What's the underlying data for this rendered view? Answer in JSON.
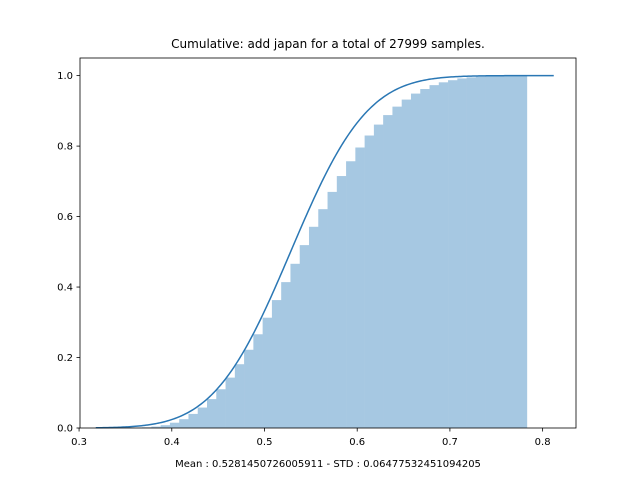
{
  "chart_data": {
    "type": "area",
    "title": "Cumulative: add japan for a total of 27999 samples.",
    "xlabel": "Mean : 0.5281450726005911 - STD : 0.06477532451094205",
    "ylabel": "",
    "xlim": [
      0.301,
      0.836
    ],
    "ylim": [
      0,
      1.05
    ],
    "x_ticks": [
      "0.3",
      "0.4",
      "0.5",
      "0.6",
      "0.7",
      "0.8"
    ],
    "y_ticks": [
      "0.0",
      "0.2",
      "0.4",
      "0.6",
      "0.8",
      "1.0"
    ],
    "grid": false,
    "colors": {
      "bars": "#a6c8e2",
      "line": "#2a77b4"
    },
    "histogram": {
      "bin_edges": [
        0.318,
        0.328,
        0.338,
        0.348,
        0.358,
        0.368,
        0.378,
        0.388,
        0.398,
        0.408,
        0.418,
        0.428,
        0.438,
        0.448,
        0.458,
        0.468,
        0.478,
        0.488,
        0.498,
        0.508,
        0.518,
        0.528,
        0.538,
        0.548,
        0.558,
        0.568,
        0.578,
        0.588,
        0.598,
        0.608,
        0.618,
        0.628,
        0.638,
        0.648,
        0.658,
        0.668,
        0.678,
        0.688,
        0.698,
        0.708,
        0.718,
        0.728,
        0.738,
        0.748,
        0.758,
        0.768,
        0.778,
        0.783
      ],
      "cumulative_values": [
        0.0,
        0.0,
        0.0,
        0.0,
        0.001,
        0.002,
        0.004,
        0.008,
        0.015,
        0.025,
        0.04,
        0.058,
        0.082,
        0.11,
        0.143,
        0.181,
        0.222,
        0.266,
        0.313,
        0.363,
        0.414,
        0.466,
        0.519,
        0.571,
        0.621,
        0.67,
        0.715,
        0.757,
        0.796,
        0.83,
        0.861,
        0.888,
        0.912,
        0.932,
        0.949,
        0.962,
        0.973,
        0.981,
        0.987,
        0.992,
        0.995,
        0.997,
        0.998,
        0.999,
        1.0,
        1.0,
        1.0
      ]
    },
    "fit_curve": {
      "mean": 0.5281450726005911,
      "std": 0.06477532451094205,
      "x_range": [
        0.318,
        0.812
      ]
    }
  }
}
